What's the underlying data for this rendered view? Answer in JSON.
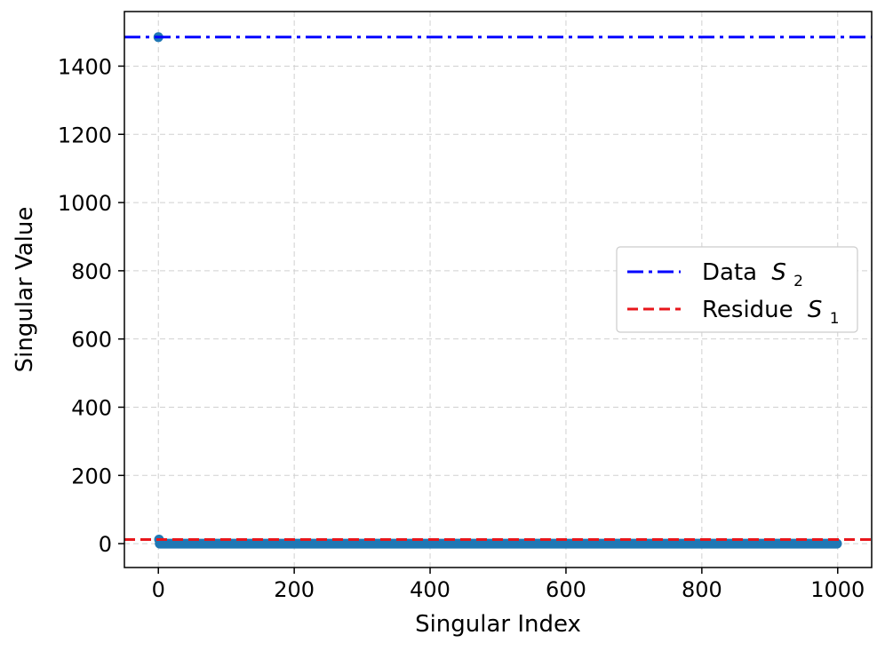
{
  "chart_data": {
    "type": "scatter",
    "title": "",
    "xlabel": "Singular Index",
    "ylabel": "Singular Value",
    "xlim": [
      -50,
      1050
    ],
    "ylim": [
      -70,
      1560
    ],
    "xticks": [
      0,
      200,
      400,
      600,
      800,
      1000
    ],
    "yticks": [
      0,
      200,
      400,
      600,
      800,
      1000,
      1200,
      1400
    ],
    "grid": true,
    "legend_position": "center-right",
    "series": [
      {
        "kind": "points",
        "color": "#1f77b4",
        "points": [
          [
            0,
            1485
          ],
          [
            1,
            12
          ]
        ],
        "tail": {
          "x_start": 2,
          "x_end": 999,
          "y": 0
        }
      }
    ],
    "reference_lines": [
      {
        "label": "Data",
        "symbol": "S",
        "subscript": "2",
        "y": 1485,
        "color": "#0000ff",
        "style": "dashdot"
      },
      {
        "label": "Residue",
        "symbol": "S",
        "subscript": "1",
        "y": 12,
        "color": "#e8161b",
        "style": "dashed"
      }
    ]
  }
}
